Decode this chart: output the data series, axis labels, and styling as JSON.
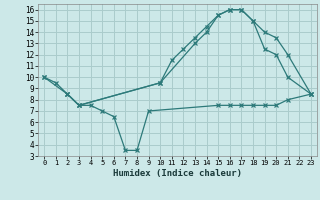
{
  "xlabel": "Humidex (Indice chaleur)",
  "ylabel": "",
  "bg_color": "#cce8e8",
  "grid_color": "#aacccc",
  "line_color": "#2d7a7a",
  "xlim": [
    -0.5,
    23.5
  ],
  "ylim": [
    3,
    16.5
  ],
  "xticks": [
    0,
    1,
    2,
    3,
    4,
    5,
    6,
    7,
    8,
    9,
    10,
    11,
    12,
    13,
    14,
    15,
    16,
    17,
    18,
    19,
    20,
    21,
    22,
    23
  ],
  "yticks": [
    3,
    4,
    5,
    6,
    7,
    8,
    9,
    10,
    11,
    12,
    13,
    14,
    15,
    16
  ],
  "line1_x": [
    0,
    1,
    2,
    3,
    10,
    11,
    12,
    13,
    14,
    15,
    16,
    17,
    18,
    19,
    20,
    21,
    23
  ],
  "line1_y": [
    10,
    9.5,
    8.5,
    7.5,
    9.5,
    11.5,
    12.5,
    13.5,
    14.5,
    15.5,
    16,
    16,
    15,
    12.5,
    12,
    10,
    8.5
  ],
  "line2_x": [
    0,
    2,
    3,
    10,
    13,
    14,
    15,
    16,
    17,
    18,
    19,
    20,
    21,
    23
  ],
  "line2_y": [
    10,
    8.5,
    7.5,
    9.5,
    13,
    14,
    15.5,
    16,
    16,
    15,
    14,
    13.5,
    12,
    8.5
  ],
  "line3_x": [
    2,
    3,
    4,
    5,
    6,
    7,
    8,
    9,
    15,
    16,
    17,
    18,
    19,
    20,
    21,
    23
  ],
  "line3_y": [
    8.5,
    7.5,
    7.5,
    7,
    6.5,
    3.5,
    3.5,
    7,
    7.5,
    7.5,
    7.5,
    7.5,
    7.5,
    7.5,
    8,
    8.5
  ]
}
